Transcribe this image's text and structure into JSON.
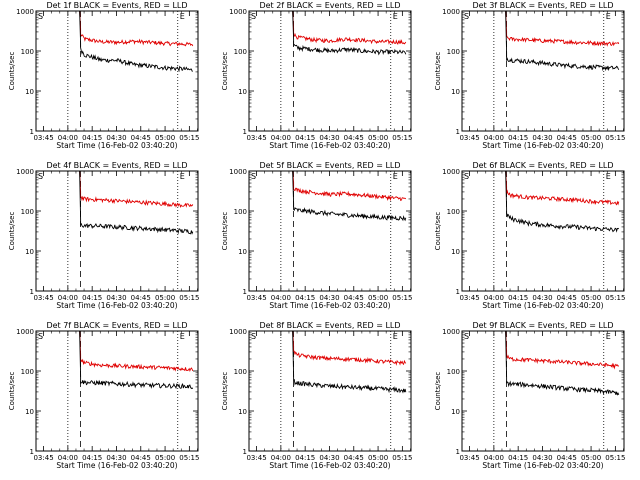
{
  "chart_data": {
    "type": "line",
    "panel_count": 9,
    "y_scale": "log",
    "ylim": [
      1,
      1000
    ],
    "y_ticks": [
      1,
      10,
      100,
      1000
    ],
    "y_tick_labels": [
      "1",
      "10",
      "100",
      "1000"
    ],
    "ylabel": "Counts/sec",
    "xlabel": "Start Time (16-Feb-02 03:40:20)",
    "x_tick_labels": [
      "03:45",
      "04:00",
      "04:15",
      "04:30",
      "04:45",
      "05:00",
      "05:15"
    ],
    "x_tick_minutes_from_start": [
      4.67,
      19.67,
      34.67,
      49.67,
      64.67,
      79.67,
      94.67
    ],
    "x_range_minutes": [
      0,
      100
    ],
    "vertical_lines": [
      {
        "style": "dotted",
        "minute": 19.67
      },
      {
        "style": "dashed",
        "minute": 27.5
      },
      {
        "style": "dotted",
        "minute": 87.5
      }
    ],
    "corner_labels": {
      "left": "S",
      "right": "E"
    },
    "series_colors": {
      "events": "#000000",
      "lld": "#e00000"
    },
    "panels": [
      {
        "title": "Det 1f BLACK = Events, RED = LLD",
        "events": [
          [
            27.5,
            110
          ],
          [
            30,
            80
          ],
          [
            40,
            60
          ],
          [
            50,
            58
          ],
          [
            60,
            46
          ],
          [
            70,
            42
          ],
          [
            80,
            38
          ],
          [
            90,
            36
          ],
          [
            97,
            33
          ]
        ],
        "lld": [
          [
            27.5,
            260
          ],
          [
            30,
            200
          ],
          [
            40,
            170
          ],
          [
            50,
            165
          ],
          [
            60,
            175
          ],
          [
            70,
            165
          ],
          [
            80,
            155
          ],
          [
            90,
            150
          ],
          [
            97,
            145
          ]
        ]
      },
      {
        "title": "Det 2f BLACK = Events, RED = LLD",
        "events": [
          [
            27.5,
            140
          ],
          [
            30,
            120
          ],
          [
            40,
            110
          ],
          [
            50,
            100
          ],
          [
            60,
            110
          ],
          [
            70,
            100
          ],
          [
            80,
            95
          ],
          [
            90,
            95
          ],
          [
            97,
            90
          ]
        ],
        "lld": [
          [
            27.5,
            260
          ],
          [
            30,
            220
          ],
          [
            40,
            190
          ],
          [
            50,
            180
          ],
          [
            60,
            200
          ],
          [
            70,
            185
          ],
          [
            80,
            170
          ],
          [
            90,
            170
          ],
          [
            97,
            160
          ]
        ]
      },
      {
        "title": "Det 3f BLACK = Events, RED = LLD",
        "events": [
          [
            27.5,
            65
          ],
          [
            30,
            60
          ],
          [
            40,
            55
          ],
          [
            50,
            50
          ],
          [
            60,
            45
          ],
          [
            70,
            42
          ],
          [
            80,
            40
          ],
          [
            90,
            38
          ],
          [
            97,
            37
          ]
        ],
        "lld": [
          [
            27.5,
            220
          ],
          [
            30,
            200
          ],
          [
            40,
            190
          ],
          [
            50,
            180
          ],
          [
            60,
            175
          ],
          [
            70,
            165
          ],
          [
            80,
            160
          ],
          [
            90,
            155
          ],
          [
            97,
            150
          ]
        ]
      },
      {
        "title": "Det 4f BLACK = Events, RED = LLD",
        "events": [
          [
            27.5,
            45
          ],
          [
            30,
            43
          ],
          [
            40,
            42
          ],
          [
            50,
            40
          ],
          [
            60,
            38
          ],
          [
            70,
            36
          ],
          [
            80,
            34
          ],
          [
            90,
            32
          ],
          [
            97,
            30
          ]
        ],
        "lld": [
          [
            27.5,
            220
          ],
          [
            30,
            200
          ],
          [
            40,
            190
          ],
          [
            50,
            180
          ],
          [
            60,
            170
          ],
          [
            70,
            160
          ],
          [
            80,
            150
          ],
          [
            90,
            140
          ],
          [
            97,
            135
          ]
        ]
      },
      {
        "title": "Det 5f BLACK = Events, RED = LLD",
        "events": [
          [
            27.5,
            110
          ],
          [
            30,
            105
          ],
          [
            40,
            95
          ],
          [
            50,
            85
          ],
          [
            60,
            80
          ],
          [
            70,
            75
          ],
          [
            80,
            70
          ],
          [
            90,
            68
          ],
          [
            97,
            65
          ]
        ],
        "lld": [
          [
            27.5,
            380
          ],
          [
            30,
            330
          ],
          [
            40,
            290
          ],
          [
            50,
            260
          ],
          [
            60,
            270
          ],
          [
            70,
            250
          ],
          [
            80,
            230
          ],
          [
            90,
            210
          ],
          [
            97,
            200
          ]
        ]
      },
      {
        "title": "Det 6f BLACK = Events, RED = LLD",
        "events": [
          [
            27.5,
            85
          ],
          [
            30,
            65
          ],
          [
            40,
            50
          ],
          [
            50,
            45
          ],
          [
            60,
            42
          ],
          [
            70,
            40
          ],
          [
            80,
            37
          ],
          [
            90,
            35
          ],
          [
            97,
            33
          ]
        ],
        "lld": [
          [
            27.5,
            300
          ],
          [
            30,
            250
          ],
          [
            40,
            220
          ],
          [
            50,
            210
          ],
          [
            60,
            200
          ],
          [
            70,
            190
          ],
          [
            80,
            175
          ],
          [
            90,
            165
          ],
          [
            97,
            155
          ]
        ]
      },
      {
        "title": "Det 7f BLACK = Events, RED = LLD",
        "events": [
          [
            27.5,
            55
          ],
          [
            30,
            52
          ],
          [
            40,
            50
          ],
          [
            50,
            48
          ],
          [
            60,
            46
          ],
          [
            70,
            44
          ],
          [
            80,
            43
          ],
          [
            90,
            42
          ],
          [
            97,
            40
          ]
        ],
        "lld": [
          [
            27.5,
            190
          ],
          [
            30,
            160
          ],
          [
            40,
            140
          ],
          [
            50,
            135
          ],
          [
            60,
            130
          ],
          [
            70,
            125
          ],
          [
            80,
            120
          ],
          [
            90,
            115
          ],
          [
            97,
            110
          ]
        ]
      },
      {
        "title": "Det 8f BLACK = Events, RED = LLD",
        "events": [
          [
            27.5,
            55
          ],
          [
            30,
            50
          ],
          [
            40,
            45
          ],
          [
            50,
            42
          ],
          [
            60,
            40
          ],
          [
            70,
            38
          ],
          [
            80,
            36
          ],
          [
            90,
            34
          ],
          [
            97,
            32
          ]
        ],
        "lld": [
          [
            27.5,
            300
          ],
          [
            30,
            250
          ],
          [
            40,
            220
          ],
          [
            50,
            205
          ],
          [
            60,
            200
          ],
          [
            70,
            190
          ],
          [
            80,
            175
          ],
          [
            90,
            165
          ],
          [
            97,
            160
          ]
        ]
      },
      {
        "title": "Det 9f BLACK = Events, RED = LLD",
        "events": [
          [
            27.5,
            50
          ],
          [
            30,
            48
          ],
          [
            40,
            45
          ],
          [
            50,
            42
          ],
          [
            60,
            38
          ],
          [
            70,
            35
          ],
          [
            80,
            33
          ],
          [
            90,
            30
          ],
          [
            97,
            28
          ]
        ],
        "lld": [
          [
            27.5,
            230
          ],
          [
            30,
            200
          ],
          [
            40,
            190
          ],
          [
            50,
            180
          ],
          [
            60,
            170
          ],
          [
            70,
            160
          ],
          [
            80,
            150
          ],
          [
            90,
            140
          ],
          [
            97,
            130
          ]
        ]
      }
    ]
  }
}
